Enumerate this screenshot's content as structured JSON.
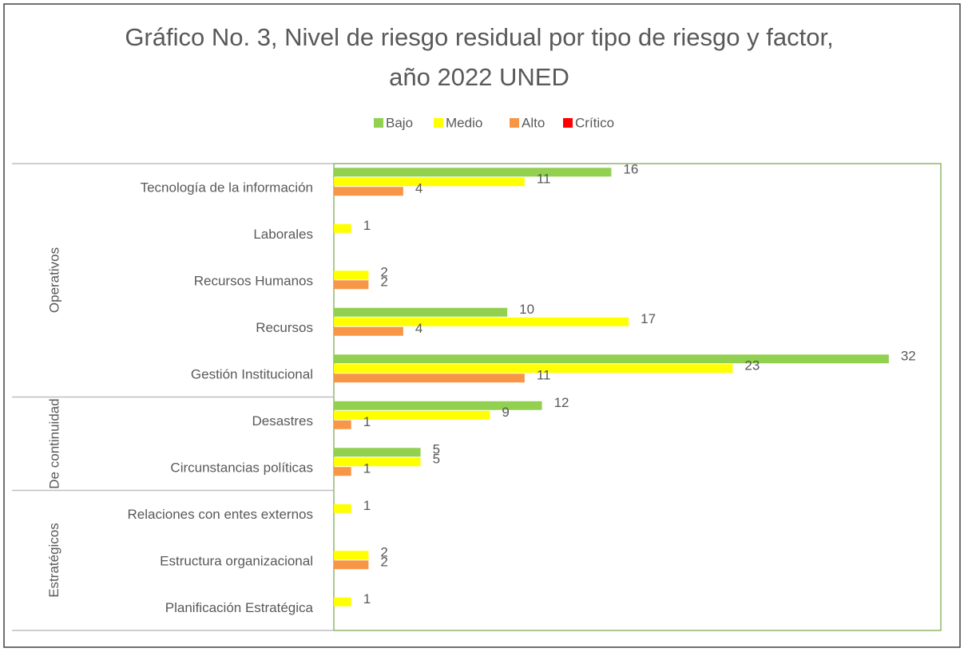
{
  "chart_data": {
    "type": "bar",
    "orientation": "horizontal",
    "title": "Gráfico No. 3, Nivel de riesgo residual por tipo de riesgo y factor, año 2022 UNED",
    "groups": [
      {
        "name": "Operativos",
        "size": 5
      },
      {
        "name": "De continuidad",
        "size": 2
      },
      {
        "name": "Estratégicos",
        "size": 3
      }
    ],
    "categories": [
      "Tecnología de la información",
      "Laborales",
      "Recursos Humanos",
      "Recursos",
      "Gestión Institucional",
      "Desastres",
      "Circunstancias políticas",
      "Relaciones con entes externos",
      "Estructura organizacional",
      "Planificación Estratégica"
    ],
    "series": [
      {
        "name": "Bajo",
        "color": "#92d050",
        "values": [
          16,
          null,
          null,
          10,
          32,
          12,
          5,
          null,
          null,
          null
        ]
      },
      {
        "name": "Medio",
        "color": "#ffff00",
        "values": [
          11,
          1,
          2,
          17,
          23,
          9,
          5,
          1,
          2,
          1
        ]
      },
      {
        "name": "Alto",
        "color": "#f79646",
        "values": [
          4,
          null,
          2,
          4,
          11,
          1,
          1,
          null,
          2,
          null
        ]
      },
      {
        "name": "Crítico",
        "color": "#ff0000",
        "values": [
          null,
          null,
          null,
          null,
          null,
          null,
          null,
          null,
          null,
          null
        ]
      }
    ],
    "xlim": [
      0,
      35
    ],
    "legend": "top"
  }
}
